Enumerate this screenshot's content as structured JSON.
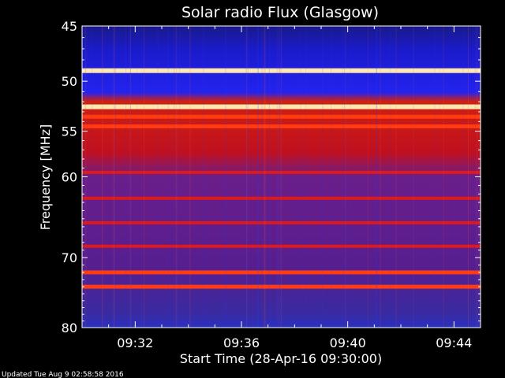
{
  "chart_data": {
    "type": "heatmap",
    "title": "Solar radio Flux (Glasgow)",
    "xlabel": "Start Time (28-Apr-16 09:30:00)",
    "ylabel": "Frequency [MHz]",
    "y_scale": "log",
    "ylim": [
      45,
      80
    ],
    "y_ticks": [
      45,
      50,
      55,
      60,
      70,
      80
    ],
    "y_tick_labels": [
      "45",
      "50",
      "55",
      "60",
      "70",
      "80"
    ],
    "xlim": [
      "09:30:00",
      "09:45:00"
    ],
    "x_ticks": [
      "09:32",
      "09:36",
      "09:40",
      "09:44"
    ],
    "bright_bands_mhz": [
      {
        "freq": 49.0,
        "level": "saturated"
      },
      {
        "freq": 52.5,
        "level": "saturated"
      },
      {
        "freq": 53.5,
        "level": "high"
      },
      {
        "freq": 54.5,
        "level": "high"
      },
      {
        "freq": 59.5,
        "level": "medium"
      },
      {
        "freq": 62.5,
        "level": "medium"
      },
      {
        "freq": 65.5,
        "level": "medium"
      },
      {
        "freq": 68.5,
        "level": "medium"
      },
      {
        "freq": 72.0,
        "level": "high"
      },
      {
        "freq": 74.0,
        "level": "high"
      }
    ],
    "colormap": [
      "#000033",
      "#0000cc",
      "#3333ff",
      "#7a1a8a",
      "#b00020",
      "#e00000",
      "#ff4000",
      "#ffd080",
      "#ffffff"
    ]
  },
  "footer": {
    "updated": "Updated Tue Aug  9 02:58:58 2016"
  }
}
